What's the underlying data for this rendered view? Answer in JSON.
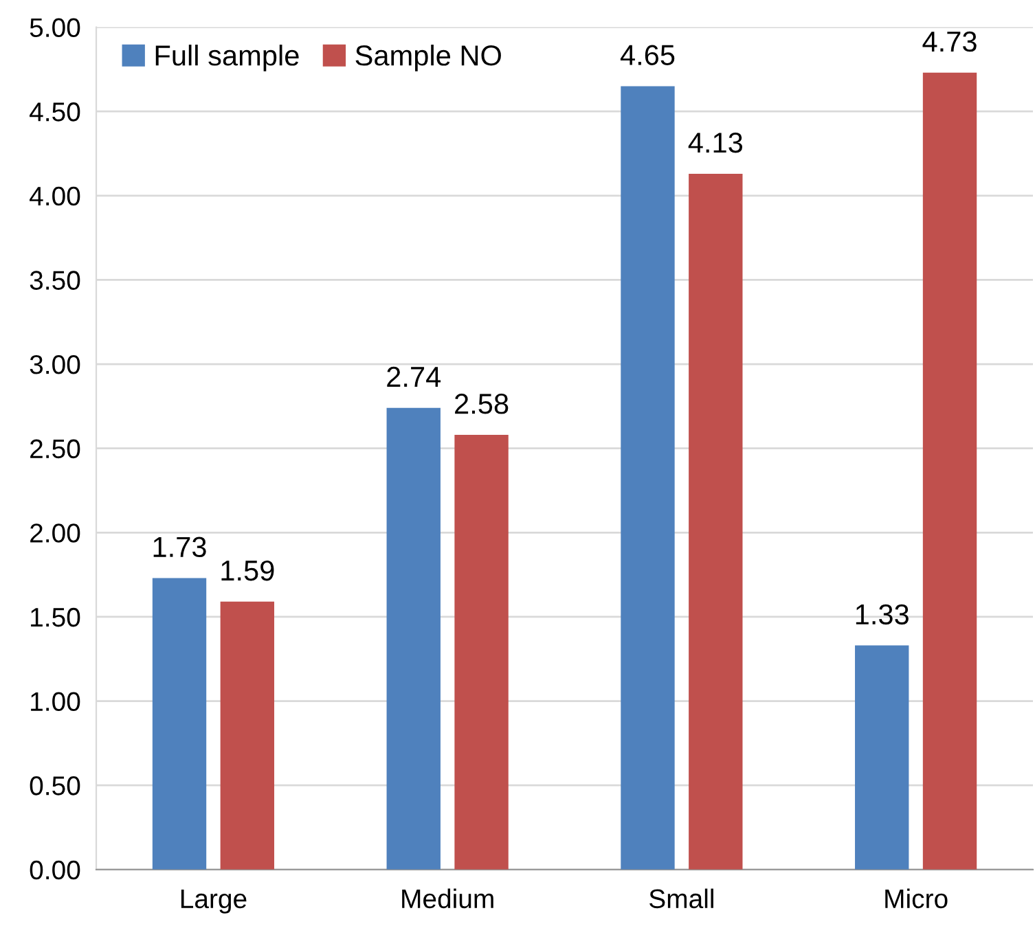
{
  "chart_data": {
    "type": "bar",
    "categories": [
      "Large",
      "Medium",
      "Small",
      "Micro"
    ],
    "series": [
      {
        "name": "Full sample",
        "color": "#4f81bd",
        "values": [
          1.73,
          2.74,
          4.65,
          1.33
        ]
      },
      {
        "name": "Sample NO",
        "color": "#c0504d",
        "values": [
          1.59,
          2.58,
          4.13,
          4.73
        ]
      }
    ],
    "ylim": [
      0,
      5
    ],
    "yticks": [
      {
        "value": 0,
        "label": "0.00"
      },
      {
        "value": 0.5,
        "label": "0.50"
      },
      {
        "value": 1,
        "label": "1.00"
      },
      {
        "value": 1.5,
        "label": "1.50"
      },
      {
        "value": 2,
        "label": "2.00"
      },
      {
        "value": 2.5,
        "label": "2.50"
      },
      {
        "value": 3,
        "label": "3.00"
      },
      {
        "value": 3.5,
        "label": "3.50"
      },
      {
        "value": 4,
        "label": "4.00"
      },
      {
        "value": 4.5,
        "label": "4.50"
      },
      {
        "value": 5,
        "label": "5.00"
      }
    ],
    "grid": "y",
    "legend": "top left",
    "data_labels": true
  }
}
